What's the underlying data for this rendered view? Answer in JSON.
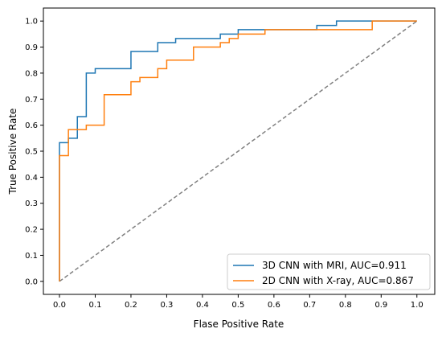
{
  "chart_data": {
    "type": "line",
    "title": "",
    "xlabel": "Flase Positive Rate",
    "ylabel": "True Positive Rate",
    "xlim": [
      -0.045,
      1.05
    ],
    "ylim": [
      -0.05,
      1.05
    ],
    "xticks": [
      "0.0",
      "0.1",
      "0.2",
      "0.3",
      "0.4",
      "0.5",
      "0.6",
      "0.7",
      "0.8",
      "0.9",
      "1.0"
    ],
    "yticks": [
      "0.0",
      "0.1",
      "0.2",
      "0.3",
      "0.4",
      "0.5",
      "0.6",
      "0.7",
      "0.8",
      "0.9",
      "1.0"
    ],
    "grid": false,
    "legend_position": "lower-right",
    "series": [
      {
        "name": "3D CNN with MRI, AUC=0.911",
        "color": "#1f77b4",
        "x": [
          0.0,
          0.0,
          0.025,
          0.025,
          0.05,
          0.05,
          0.075,
          0.075,
          0.1,
          0.1,
          0.2,
          0.2,
          0.275,
          0.275,
          0.325,
          0.325,
          0.45,
          0.45,
          0.5,
          0.5,
          0.72,
          0.72,
          0.775,
          0.775,
          0.875,
          1.0
        ],
        "y": [
          0.0,
          0.533,
          0.533,
          0.55,
          0.55,
          0.633,
          0.633,
          0.8,
          0.8,
          0.817,
          0.817,
          0.883,
          0.883,
          0.917,
          0.917,
          0.933,
          0.933,
          0.95,
          0.95,
          0.967,
          0.967,
          0.983,
          0.983,
          1.0,
          1.0,
          1.0
        ]
      },
      {
        "name": "2D CNN with X-ray, AUC=0.867",
        "color": "#ff7f0e",
        "x": [
          0.0,
          0.0,
          0.025,
          0.025,
          0.05,
          0.05,
          0.075,
          0.075,
          0.125,
          0.125,
          0.2,
          0.2,
          0.225,
          0.225,
          0.275,
          0.275,
          0.3,
          0.3,
          0.375,
          0.375,
          0.45,
          0.45,
          0.475,
          0.475,
          0.5,
          0.5,
          0.575,
          0.575,
          0.875,
          0.875,
          1.0
        ],
        "y": [
          0.0,
          0.483,
          0.483,
          0.583,
          0.583,
          0.583,
          0.583,
          0.6,
          0.6,
          0.717,
          0.717,
          0.767,
          0.767,
          0.783,
          0.783,
          0.817,
          0.817,
          0.85,
          0.85,
          0.9,
          0.9,
          0.917,
          0.917,
          0.933,
          0.933,
          0.95,
          0.95,
          0.967,
          0.967,
          1.0,
          1.0
        ]
      }
    ],
    "reference_line": {
      "color": "#808080",
      "style": "dashed",
      "x": [
        0,
        1
      ],
      "y": [
        0,
        1
      ]
    }
  }
}
